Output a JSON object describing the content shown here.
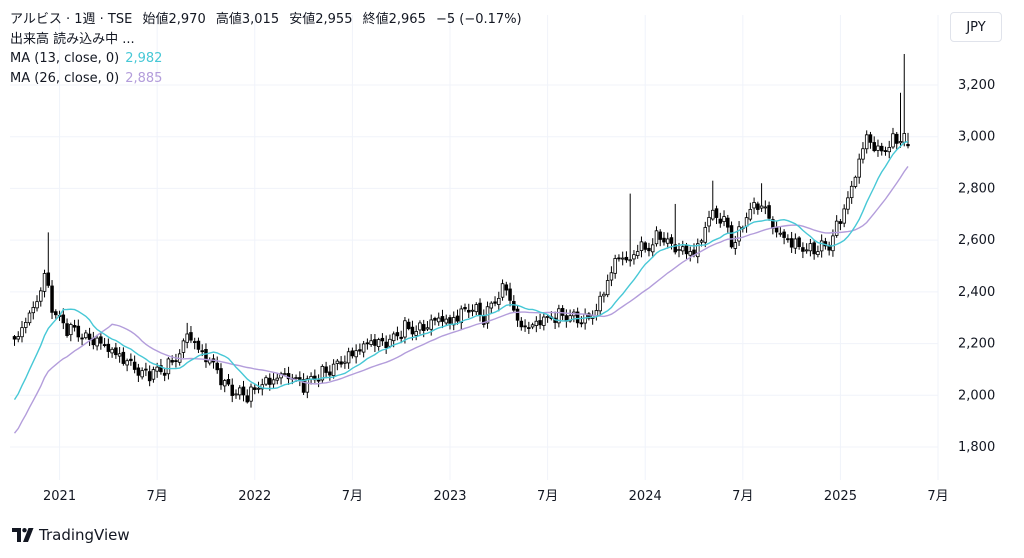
{
  "legend": {
    "symbol": "アルビス · 1週 · TSE",
    "open_label": "始値",
    "open": "2,970",
    "high_label": "高値",
    "high": "3,015",
    "low_label": "安値",
    "low": "2,955",
    "close_label": "終値",
    "close": "2,965",
    "change": "−5 (−0.17%)",
    "volume_loading": "出来高 読み込み中 ...",
    "ma13_label": "MA (13, close, 0)",
    "ma13_value": "2,982",
    "ma26_label": "MA (26, close, 0)",
    "ma26_value": "2,885"
  },
  "currency": "JPY",
  "brand": "TradingView",
  "colors": {
    "up": "#ffffff",
    "down": "#000000",
    "wick": "#000000",
    "ma13": "#47c8d6",
    "ma26": "#b39ddb",
    "grid": "#f0f3fa"
  },
  "chart_data": {
    "type": "candlestick",
    "interval": "weekly",
    "ylim": [
      1700,
      3380
    ],
    "y_ticks": [
      1800,
      2000,
      2200,
      2400,
      2600,
      2800,
      3000,
      3200
    ],
    "y_tick_labels": [
      "1,800",
      "2,000",
      "2,200",
      "2,400",
      "2,600",
      "2,800",
      "3,000",
      "3,200"
    ],
    "x_ticks": [
      "2021",
      "7月",
      "2022",
      "7月",
      "2023",
      "7月",
      "2024",
      "7月",
      "2025",
      "7月"
    ],
    "x_tick_weeks": [
      12,
      38,
      64,
      90,
      116,
      142,
      168,
      194,
      220,
      246
    ],
    "grid": true,
    "anchors": [
      [
        0,
        2200
      ],
      [
        3,
        2290
      ],
      [
        6,
        2360
      ],
      [
        8,
        2470
      ],
      [
        10,
        2340
      ],
      [
        13,
        2270
      ],
      [
        16,
        2250
      ],
      [
        19,
        2220
      ],
      [
        22,
        2210
      ],
      [
        25,
        2180
      ],
      [
        28,
        2150
      ],
      [
        31,
        2120
      ],
      [
        34,
        2080
      ],
      [
        37,
        2090
      ],
      [
        40,
        2100
      ],
      [
        44,
        2160
      ],
      [
        46,
        2240
      ],
      [
        48,
        2200
      ],
      [
        50,
        2160
      ],
      [
        53,
        2120
      ],
      [
        56,
        2040
      ],
      [
        59,
        2010
      ],
      [
        62,
        2000
      ],
      [
        64,
        2020
      ],
      [
        66,
        2050
      ],
      [
        68,
        2050
      ],
      [
        71,
        2080
      ],
      [
        74,
        2070
      ],
      [
        77,
        2040
      ],
      [
        80,
        2070
      ],
      [
        83,
        2090
      ],
      [
        86,
        2120
      ],
      [
        89,
        2150
      ],
      [
        92,
        2180
      ],
      [
        95,
        2210
      ],
      [
        98,
        2200
      ],
      [
        101,
        2220
      ],
      [
        104,
        2260
      ],
      [
        107,
        2250
      ],
      [
        110,
        2270
      ],
      [
        113,
        2300
      ],
      [
        116,
        2280
      ],
      [
        119,
        2320
      ],
      [
        122,
        2340
      ],
      [
        125,
        2300
      ],
      [
        128,
        2370
      ],
      [
        131,
        2420
      ],
      [
        134,
        2280
      ],
      [
        137,
        2260
      ],
      [
        140,
        2290
      ],
      [
        143,
        2300
      ],
      [
        146,
        2310
      ],
      [
        149,
        2300
      ],
      [
        152,
        2290
      ],
      [
        155,
        2330
      ],
      [
        158,
        2440
      ],
      [
        160,
        2520
      ],
      [
        162,
        2540
      ],
      [
        164,
        2510
      ],
      [
        166,
        2580
      ],
      [
        168,
        2560
      ],
      [
        170,
        2590
      ],
      [
        172,
        2620
      ],
      [
        174,
        2590
      ],
      [
        176,
        2570
      ],
      [
        178,
        2560
      ],
      [
        181,
        2550
      ],
      [
        183,
        2600
      ],
      [
        185,
        2700
      ],
      [
        187,
        2690
      ],
      [
        189,
        2680
      ],
      [
        191,
        2590
      ],
      [
        193,
        2620
      ],
      [
        195,
        2700
      ],
      [
        198,
        2740
      ],
      [
        200,
        2720
      ],
      [
        202,
        2650
      ],
      [
        204,
        2620
      ],
      [
        207,
        2590
      ],
      [
        210,
        2570
      ],
      [
        212,
        2560
      ],
      [
        214,
        2570
      ],
      [
        217,
        2580
      ],
      [
        219,
        2650
      ],
      [
        221,
        2720
      ],
      [
        223,
        2800
      ],
      [
        225,
        2910
      ],
      [
        227,
        3000
      ],
      [
        229,
        2960
      ],
      [
        231,
        2940
      ],
      [
        233,
        2970
      ],
      [
        235,
        2990
      ],
      [
        237,
        3000
      ],
      [
        238,
        2965
      ]
    ],
    "spikes": [
      [
        3,
        2300
      ],
      [
        9,
        2630
      ],
      [
        46,
        2280
      ],
      [
        164,
        2780
      ],
      [
        176,
        2740
      ],
      [
        186,
        2830
      ],
      [
        199,
        2820
      ],
      [
        236,
        3170
      ],
      [
        237,
        3320
      ]
    ],
    "ma13_final": 2982,
    "ma26_final": 2885,
    "last": {
      "open": 2970,
      "high": 3015,
      "low": 2955,
      "close": 2965
    }
  }
}
